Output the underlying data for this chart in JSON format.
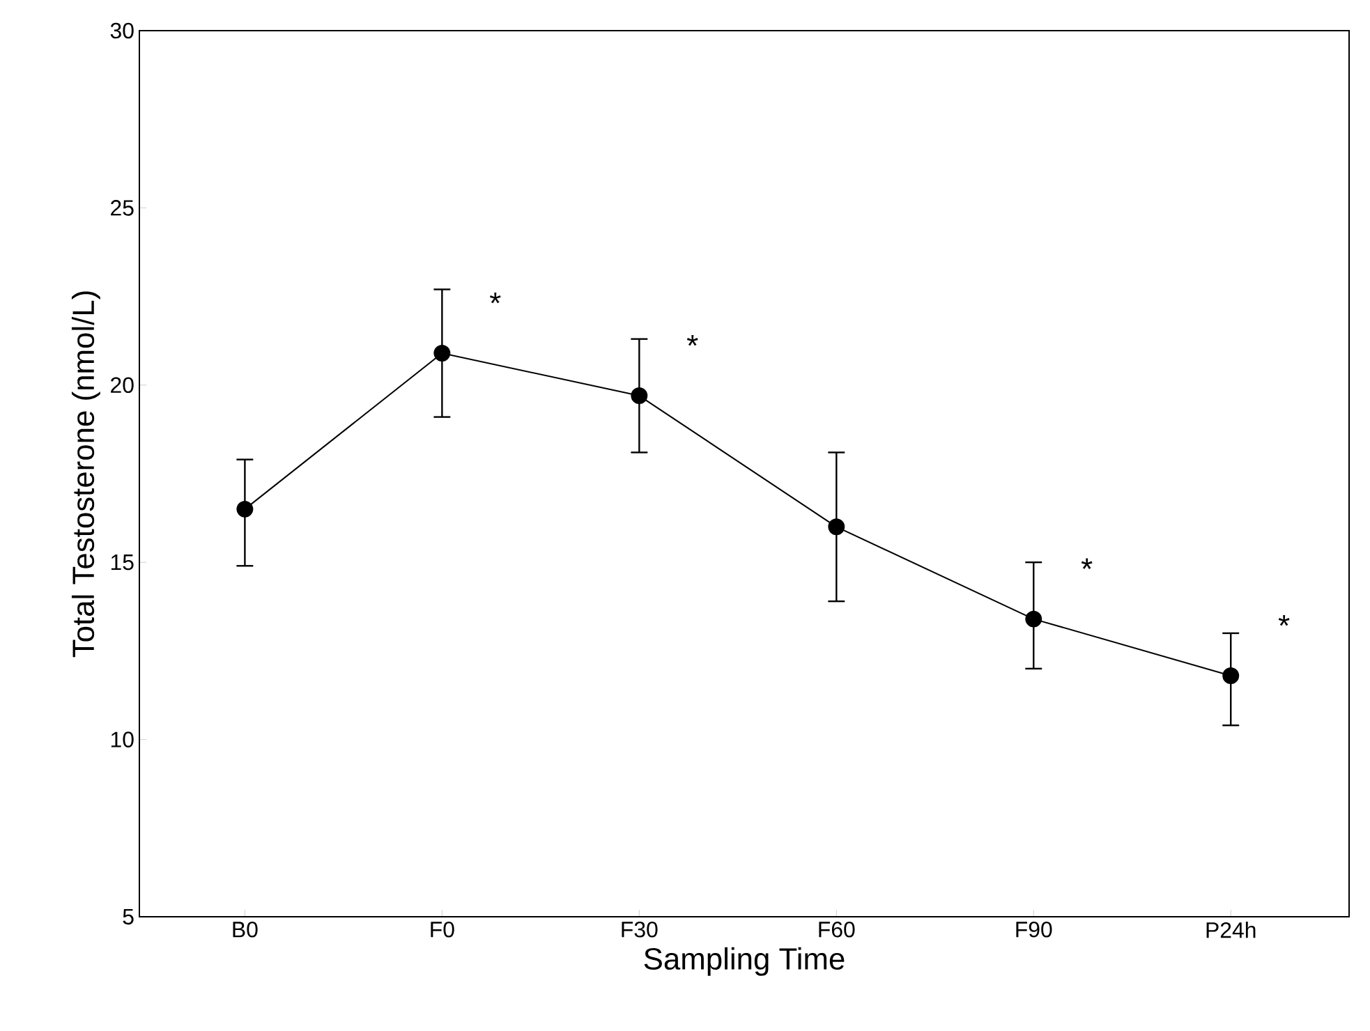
{
  "chart_data": {
    "type": "line",
    "xlabel": "Sampling Time",
    "ylabel": "Total Testosterone (nmol/L)",
    "categories": [
      "B0",
      "F0",
      "F30",
      "F60",
      "F90",
      "P24h"
    ],
    "series": [
      {
        "color": "#000000",
        "values": [
          16.5,
          20.9,
          19.7,
          16.0,
          13.4,
          11.8
        ],
        "errors": [
          [
            14.9,
            17.9
          ],
          [
            19.1,
            22.7
          ],
          [
            18.1,
            21.3
          ],
          [
            13.9,
            18.1
          ],
          [
            12.0,
            15.0
          ],
          [
            10.4,
            13.0
          ]
        ]
      }
    ],
    "ylim": [
      5,
      30
    ],
    "yticks": [
      5,
      10,
      15,
      20,
      25,
      30
    ],
    "annotations": [
      {
        "text": "*",
        "x": "F0",
        "y": 20.9
      },
      {
        "text": "*",
        "x": "F30",
        "y": 19.7
      },
      {
        "text": "*",
        "x": "F90",
        "y": 13.4
      },
      {
        "text": "*",
        "x": "P24h",
        "y": 11.8
      }
    ],
    "grid": false,
    "marker": "circle",
    "line_style": "solid"
  }
}
